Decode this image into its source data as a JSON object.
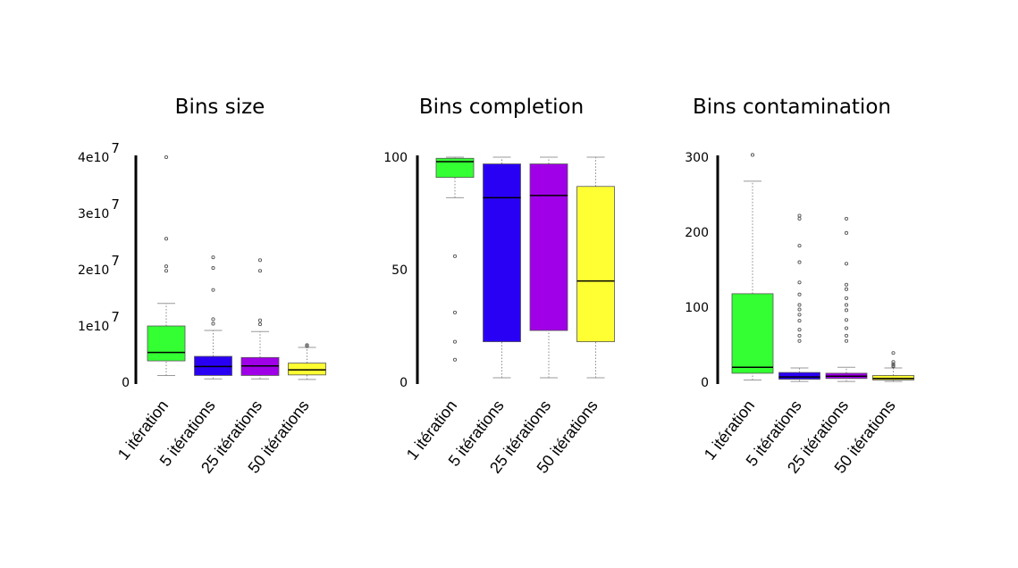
{
  "chart_data": [
    {
      "type": "box",
      "title": "Bins size",
      "categories": [
        "1 itération",
        "5 itérations",
        "25 itérations",
        "50 itérations"
      ],
      "colors": [
        "#33ff33",
        "#2a00f5",
        "#a000e8",
        "#ffff33"
      ],
      "yticks": [
        {
          "value": 0,
          "base": "0",
          "exp": ""
        },
        {
          "value": 10000000,
          "base": "1e10",
          "exp": "7"
        },
        {
          "value": 20000000,
          "base": "2e10",
          "exp": "7"
        },
        {
          "value": 30000000,
          "base": "3e10",
          "exp": "7"
        },
        {
          "value": 40000000,
          "base": "4e10",
          "exp": "7"
        }
      ],
      "ylim": [
        0,
        40000000
      ],
      "boxes": [
        {
          "whisker_low": 1200000,
          "q1": 3800000,
          "median": 5300000,
          "q3": 10000000,
          "whisker_high": 14000000,
          "outliers": [
            40000000,
            25500000,
            20600000,
            19800000
          ]
        },
        {
          "whisker_low": 600000,
          "q1": 1200000,
          "median": 2800000,
          "q3": 4600000,
          "whisker_high": 9200000,
          "outliers": [
            22200000,
            20300000,
            16400000,
            11200000,
            10400000
          ]
        },
        {
          "whisker_low": 600000,
          "q1": 1200000,
          "median": 2900000,
          "q3": 4400000,
          "whisker_high": 9000000,
          "outliers": [
            21700000,
            19800000,
            11000000,
            10300000
          ]
        },
        {
          "whisker_low": 500000,
          "q1": 1300000,
          "median": 2200000,
          "q3": 3400000,
          "whisker_high": 6200000,
          "outliers": [
            6600000,
            6400000
          ]
        }
      ]
    },
    {
      "type": "box",
      "title": "Bins completion",
      "categories": [
        "1 itération",
        "5 itérations",
        "25 itérations",
        "50 itérations"
      ],
      "colors": [
        "#33ff33",
        "#2a00f5",
        "#a000e8",
        "#ffff33"
      ],
      "yticks": [
        {
          "value": 0,
          "base": "0",
          "exp": ""
        },
        {
          "value": 50,
          "base": "50",
          "exp": ""
        },
        {
          "value": 100,
          "base": "100",
          "exp": ""
        }
      ],
      "ylim": [
        0,
        100
      ],
      "boxes": [
        {
          "whisker_low": 82,
          "q1": 91,
          "median": 98,
          "q3": 99.5,
          "whisker_high": 100,
          "outliers": [
            56,
            31,
            18,
            10
          ]
        },
        {
          "whisker_low": 2,
          "q1": 18,
          "median": 82,
          "q3": 97,
          "whisker_high": 100,
          "outliers": []
        },
        {
          "whisker_low": 2,
          "q1": 23,
          "median": 83,
          "q3": 97,
          "whisker_high": 100,
          "outliers": []
        },
        {
          "whisker_low": 2,
          "q1": 18,
          "median": 45,
          "q3": 87,
          "whisker_high": 100,
          "outliers": []
        }
      ]
    },
    {
      "type": "box",
      "title": "Bins contamination",
      "categories": [
        "1 itération",
        "5 itérations",
        "25 itérations",
        "50 itérations"
      ],
      "colors": [
        "#33ff33",
        "#2a00f5",
        "#a000e8",
        "#ffff33"
      ],
      "yticks": [
        {
          "value": 0,
          "base": "0",
          "exp": ""
        },
        {
          "value": 100,
          "base": "100",
          "exp": ""
        },
        {
          "value": 200,
          "base": "200",
          "exp": ""
        },
        {
          "value": 300,
          "base": "300",
          "exp": ""
        }
      ],
      "ylim": [
        0,
        300
      ],
      "boxes": [
        {
          "whisker_low": 3,
          "q1": 12,
          "median": 20,
          "q3": 118,
          "whisker_high": 268,
          "outliers": [
            303
          ]
        },
        {
          "whisker_low": 1,
          "q1": 4,
          "median": 7,
          "q3": 13,
          "whisker_high": 19,
          "outliers": [
            222,
            218,
            182,
            160,
            133,
            117,
            103,
            97,
            90,
            82,
            70,
            62,
            55
          ]
        },
        {
          "whisker_low": 1,
          "q1": 5,
          "median": 8,
          "q3": 12,
          "whisker_high": 20,
          "outliers": [
            218,
            199,
            158,
            130,
            124,
            112,
            103,
            96,
            83,
            72,
            62,
            55
          ]
        },
        {
          "whisker_low": 1,
          "q1": 3,
          "median": 5,
          "q3": 9,
          "whisker_high": 19,
          "outliers": [
            39,
            27,
            24,
            22,
            21
          ]
        }
      ]
    }
  ]
}
